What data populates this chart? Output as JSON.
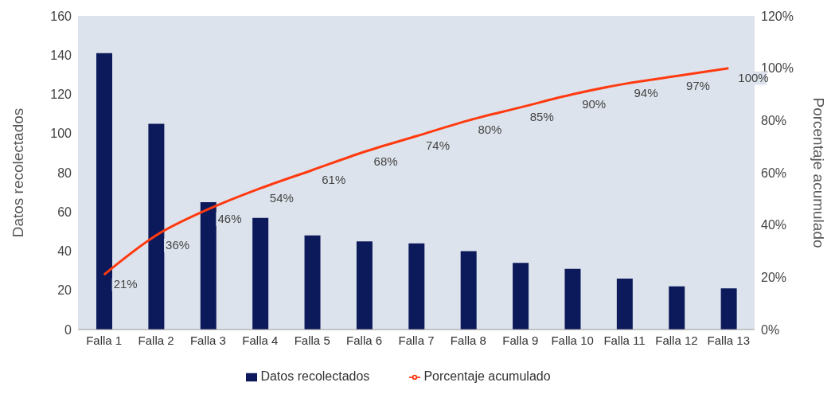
{
  "chart_data": {
    "type": "bar",
    "categories": [
      "Falla 1",
      "Falla 2",
      "Falla 3",
      "Falla 4",
      "Falla 5",
      "Falla 6",
      "Falla 7",
      "Falla 8",
      "Falla 9",
      "Falla 10",
      "Falla 11",
      "Falla 12",
      "Falla 13"
    ],
    "series": [
      {
        "name": "Datos recolectados",
        "color": "#0c1a5c",
        "values": [
          141,
          105,
          65,
          57,
          48,
          45,
          44,
          40,
          34,
          31,
          26,
          22,
          21
        ]
      },
      {
        "name": "Porcentaje acumulado",
        "type": "line",
        "axis": "y2",
        "color": "#ff3a10",
        "values": [
          21,
          36,
          46,
          54,
          61,
          68,
          74,
          80,
          85,
          90,
          94,
          97,
          100
        ],
        "value_labels": [
          "21%",
          "36%",
          "46%",
          "54%",
          "61%",
          "68%",
          "74%",
          "80%",
          "85%",
          "90%",
          "94%",
          "97%",
          "100%"
        ]
      }
    ],
    "ylabel": "Datos recolectados",
    "y2label": "Porcentaje acumulado",
    "ylim": [
      0,
      160
    ],
    "yticks": [
      0,
      20,
      40,
      60,
      80,
      100,
      120,
      140,
      160
    ],
    "y2lim": [
      0,
      120
    ],
    "y2ticks": [
      {
        "value": 0,
        "label": "0%"
      },
      {
        "value": 20,
        "label": "20%"
      },
      {
        "value": 40,
        "label": "40%"
      },
      {
        "value": 60,
        "label": "60%"
      },
      {
        "value": 80,
        "label": "80%"
      },
      {
        "value": 100,
        "label": "100%"
      },
      {
        "value": 120,
        "label": "120%"
      }
    ],
    "grid": false,
    "legend": "bottom",
    "marker": "none",
    "line_style": "solid"
  }
}
